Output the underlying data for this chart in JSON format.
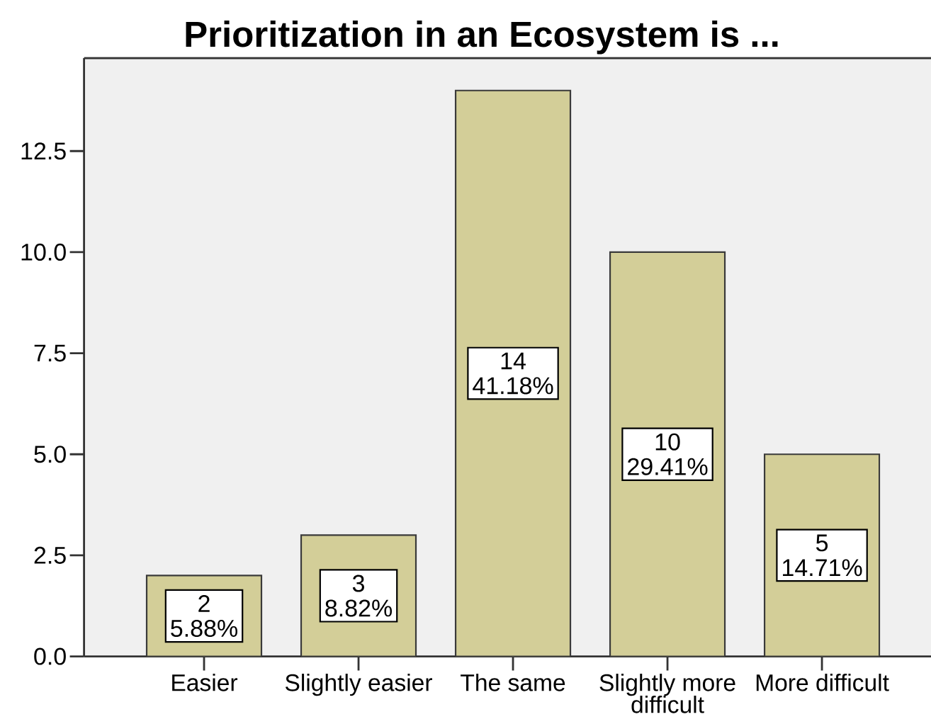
{
  "chart_data": {
    "type": "bar",
    "title": "Prioritization in an Ecosystem is ...",
    "categories": [
      "Easier",
      "Slightly easier",
      "The same",
      "Slightly more difficult",
      "More difficult"
    ],
    "values": [
      2,
      3,
      14,
      10,
      5
    ],
    "value_labels": [
      "2 5.88%",
      "3 8.82%",
      "14 41.18%",
      "10 29.41%",
      "5 14.71%"
    ],
    "color": "#d3ce98",
    "ylim": [
      0,
      14.8
    ],
    "yticks": [
      {
        "value": 0,
        "label": "0.0"
      },
      2.5,
      {
        "value": 5,
        "label": "5.0"
      },
      7.5,
      {
        "value": 10,
        "label": "10.0"
      },
      12.5
    ]
  }
}
